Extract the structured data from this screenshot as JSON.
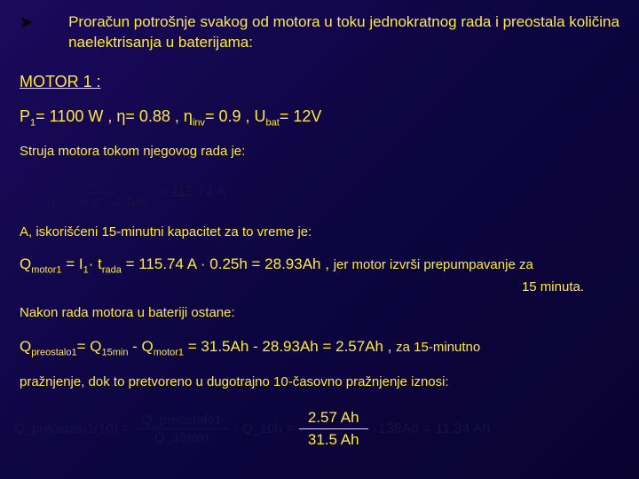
{
  "bullet": "➤",
  "intro": "Proračun potrošnje svakog od motora u toku jednokratnog rada i preostala količina naelektrisanja u baterijama:",
  "motorHeading": "MOTOR 1 :",
  "params": {
    "p1_label": "P",
    "p1_sub": "1",
    "p1_val": "= 1100 W , η= 0.88 , η",
    "inv_sub": "inv",
    "inv_val": "= 0.9 , U",
    "bat_sub": "bat",
    "bat_val": "= 12V"
  },
  "line1": "Struja motora tokom njegovog rada je:",
  "formula1": {
    "lhs": "I₁ =",
    "num": "P₁",
    "den": "η · η_inv · U_bat",
    "rhs": "= 115.74 A"
  },
  "line2": "A, iskorišćeni 15-minutni kapacitet za to vreme je:",
  "qline": {
    "main": "Q",
    "sub1": "motor1",
    "eq1": " = I",
    "sub2": "1",
    "mid": "· t",
    "sub3": "rada",
    "rest": " = 115.74 A · 0.25h = 28.93Ah ,",
    "jer": "jer motor izvrši prepumpavanje za",
    "cont": "15 minuta."
  },
  "after": "Nakon rada motora u bateriji ostane:",
  "q2": {
    "q": "Q",
    "s1": "preostalo1",
    "eq": "= Q",
    "s2": "15min",
    "minus": " - Q",
    "s3": "motor1",
    "vals": " = 31.5Ah - 28.93Ah = 2.57Ah , ",
    "za": "za 15-minutno"
  },
  "final": "pražnjenje, dok to pretvoreno u dugotrajno 10-časovno pražnjenje iznosi:",
  "formula2": {
    "lhs": "Q_preostalo1(10) =",
    "num1": "Q_preostalo1",
    "den1": "Q_15min",
    "mid": "· Q_10h =",
    "num2": "2.57 Ah",
    "den2": "31.5 Ah",
    "rhs": "·139Ah = 11.34 Ah"
  }
}
